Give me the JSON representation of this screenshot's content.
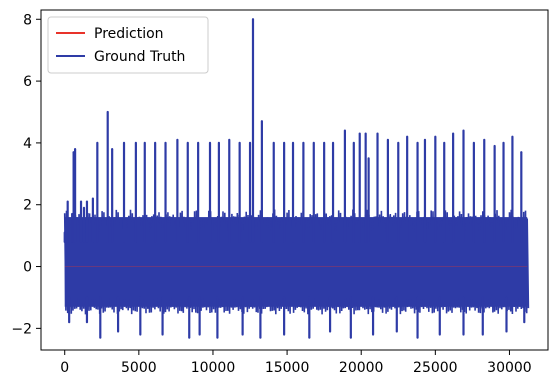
{
  "chart_data": {
    "type": "line",
    "title": "",
    "xlabel": "",
    "ylabel": "",
    "xlim": [
      -1600,
      32600
    ],
    "ylim": [
      -2.7,
      8.3
    ],
    "x_ticks": [
      0,
      5000,
      10000,
      15000,
      20000,
      25000,
      30000
    ],
    "x_tick_labels": [
      "0",
      "5000",
      "10000",
      "15000",
      "20000",
      "25000",
      "30000"
    ],
    "y_ticks": [
      -2,
      0,
      2,
      4,
      6,
      8
    ],
    "y_tick_labels": [
      "−2",
      "0",
      "2",
      "4",
      "6",
      "8"
    ],
    "legend_position": "top-left",
    "grid": false,
    "band": {
      "x_start": 0,
      "x_end": 31200,
      "upper": 1.6,
      "lower": -1.3,
      "color": "#2e3ba6"
    },
    "series": [
      {
        "name": "Prediction",
        "color": "#e8332a",
        "x": [
          0,
          31200
        ],
        "y": [
          0,
          0
        ]
      },
      {
        "name": "Ground Truth",
        "color": "#2e3ba6",
        "spikes": [
          [
            0,
            1.1
          ],
          [
            200,
            2.1
          ],
          [
            500,
            1.7
          ],
          [
            600,
            3.7
          ],
          [
            700,
            3.8
          ],
          [
            1100,
            2.1
          ],
          [
            1300,
            1.9
          ],
          [
            1500,
            2.1
          ],
          [
            1900,
            2.2
          ],
          [
            2200,
            4.0
          ],
          [
            2900,
            5.0
          ],
          [
            3200,
            3.8
          ],
          [
            4000,
            4.0
          ],
          [
            4800,
            4.0
          ],
          [
            5400,
            4.0
          ],
          [
            6100,
            4.0
          ],
          [
            6800,
            4.0
          ],
          [
            7600,
            4.1
          ],
          [
            8300,
            4.0
          ],
          [
            9000,
            4.0
          ],
          [
            9800,
            4.0
          ],
          [
            10400,
            4.0
          ],
          [
            11100,
            4.1
          ],
          [
            11800,
            4.0
          ],
          [
            12500,
            4.0
          ],
          [
            12700,
            8.0
          ],
          [
            13300,
            4.7
          ],
          [
            14100,
            4.0
          ],
          [
            14800,
            4.0
          ],
          [
            15400,
            4.0
          ],
          [
            16100,
            4.0
          ],
          [
            16800,
            4.0
          ],
          [
            17500,
            4.0
          ],
          [
            18100,
            4.0
          ],
          [
            18900,
            4.4
          ],
          [
            19500,
            4.0
          ],
          [
            19900,
            4.3
          ],
          [
            20300,
            4.3
          ],
          [
            20500,
            3.5
          ],
          [
            21100,
            4.3
          ],
          [
            21800,
            4.1
          ],
          [
            22500,
            4.0
          ],
          [
            23100,
            4.2
          ],
          [
            23800,
            4.0
          ],
          [
            24300,
            4.1
          ],
          [
            25000,
            4.2
          ],
          [
            25600,
            4.0
          ],
          [
            26200,
            4.3
          ],
          [
            26900,
            4.4
          ],
          [
            27600,
            4.0
          ],
          [
            28300,
            4.1
          ],
          [
            29000,
            3.9
          ],
          [
            29600,
            4.0
          ],
          [
            30200,
            4.2
          ],
          [
            30800,
            3.7
          ]
        ],
        "dips": [
          [
            300,
            -1.8
          ],
          [
            1500,
            -1.8
          ],
          [
            2400,
            -2.3
          ],
          [
            3600,
            -2.1
          ],
          [
            5100,
            -2.2
          ],
          [
            6600,
            -2.2
          ],
          [
            8400,
            -2.3
          ],
          [
            9100,
            -2.2
          ],
          [
            10300,
            -2.3
          ],
          [
            12000,
            -2.2
          ],
          [
            13200,
            -2.3
          ],
          [
            14800,
            -2.2
          ],
          [
            16500,
            -2.3
          ],
          [
            17900,
            -2.1
          ],
          [
            19300,
            -2.3
          ],
          [
            20800,
            -2.2
          ],
          [
            22400,
            -2.1
          ],
          [
            23800,
            -2.3
          ],
          [
            25300,
            -2.2
          ],
          [
            26900,
            -2.2
          ],
          [
            28200,
            -2.2
          ],
          [
            29800,
            -2.1
          ],
          [
            31000,
            -1.8
          ]
        ]
      }
    ]
  }
}
